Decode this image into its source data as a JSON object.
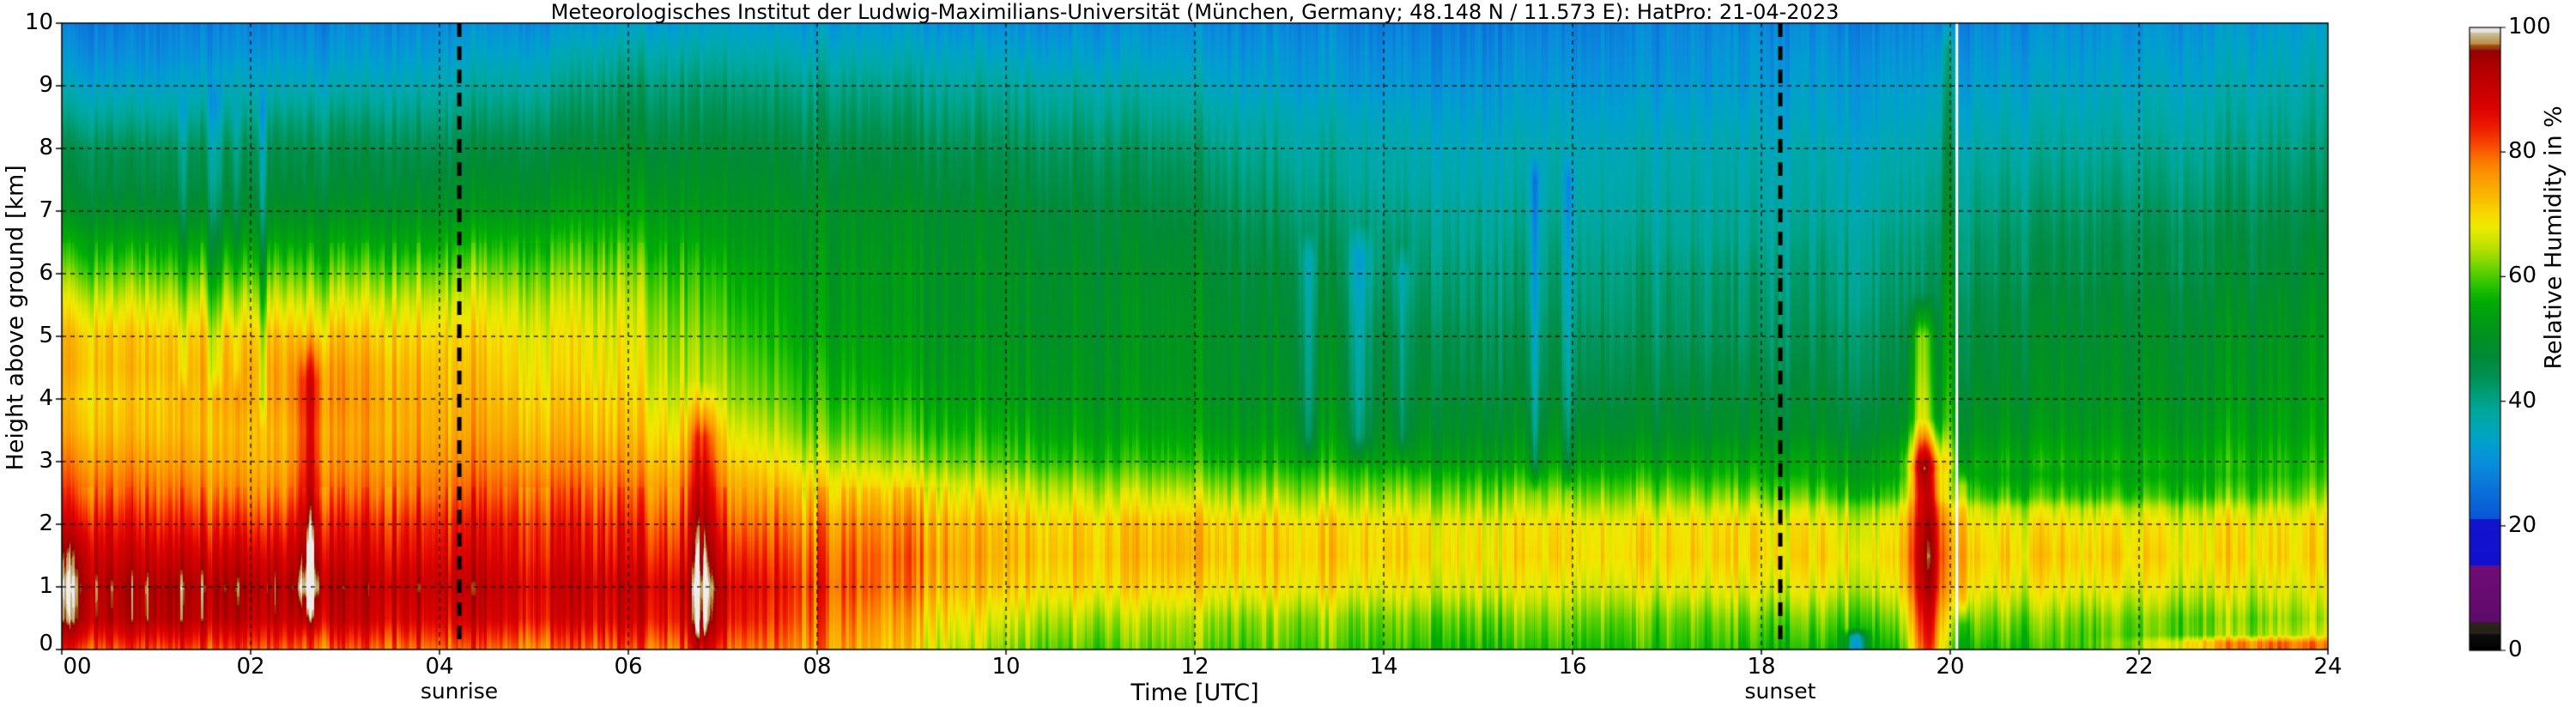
{
  "figure": {
    "title": "Meteorologisches Institut der Ludwig-Maximilians-Universität (München, Germany; 48.148 N / 11.573 E):    HatPro: 21-04-2023",
    "background": "#ffffff"
  },
  "axes": {
    "xlabel": "Time [UTC]",
    "ylabel": "Height above ground [km]",
    "x_tick_labels": [
      "00",
      "02",
      "04",
      "06",
      "08",
      "10",
      "12",
      "14",
      "16",
      "18",
      "20",
      "22",
      "24"
    ],
    "x_tick_hours": [
      0,
      2,
      4,
      6,
      8,
      10,
      12,
      14,
      16,
      18,
      20,
      22,
      24
    ],
    "y_tick_labels": [
      "0",
      "1",
      "2",
      "3",
      "4",
      "5",
      "6",
      "7",
      "8",
      "9",
      "10"
    ],
    "y_tick_km": [
      0,
      1,
      2,
      3,
      4,
      5,
      6,
      7,
      8,
      9,
      10
    ],
    "x_range_hours": [
      0,
      24
    ],
    "y_range_km": [
      0,
      10
    ],
    "grid": "dashed black"
  },
  "markers": {
    "sunrise": {
      "label": "sunrise",
      "time_hours": 4.21
    },
    "sunset": {
      "label": "sunset",
      "time_hours": 18.2
    }
  },
  "colorbar": {
    "label": "Relative Humidity in %",
    "tick_labels": [
      "0",
      "20",
      "40",
      "60",
      "80",
      "100"
    ],
    "tick_values": [
      0,
      20,
      40,
      60,
      80,
      100
    ],
    "range": [
      0,
      100
    ]
  },
  "chart_data": {
    "type": "heatmap",
    "title": "Meteorologisches Institut der Ludwig-Maximilians-Universität (München, Germany; 48.148 N / 11.573 E):    HatPro: 21-04-2023",
    "xlabel": "Time [UTC]",
    "ylabel": "Height above ground [km]",
    "value_label": "Relative Humidity in %",
    "x_unit": "hours UTC on 21-04-2023",
    "hours": [
      0,
      1,
      2,
      3,
      4,
      5,
      6,
      7,
      8,
      9,
      10,
      11,
      12,
      13,
      14,
      15,
      16,
      17,
      18,
      19,
      20,
      21,
      22,
      23,
      24
    ],
    "heights_km": [
      0,
      0.5,
      1,
      1.5,
      2,
      2.5,
      3,
      3.5,
      4,
      4.5,
      5,
      5.5,
      6,
      6.5,
      7,
      7.5,
      8,
      8.5,
      9,
      9.5,
      10
    ],
    "rh_grid_rows_bottom_up": [
      [
        82,
        82,
        80,
        80,
        80,
        80,
        80,
        79,
        77,
        69,
        62,
        60,
        60,
        60,
        59,
        58,
        58,
        58,
        57,
        56,
        57,
        58,
        60,
        64,
        68
      ],
      [
        93,
        94,
        90,
        90,
        89,
        89,
        88,
        86,
        80,
        72,
        66,
        64,
        63,
        63,
        62,
        62,
        62,
        61,
        61,
        61,
        62,
        62,
        62,
        62,
        63
      ],
      [
        95,
        95,
        93,
        92,
        92,
        91,
        90,
        88,
        82,
        76,
        71,
        70,
        69,
        69,
        68,
        68,
        67,
        67,
        67,
        67,
        68,
        68,
        68,
        67,
        67
      ],
      [
        92,
        90,
        88,
        88,
        88,
        88,
        86,
        84,
        80,
        77,
        73,
        72,
        72,
        71,
        71,
        70,
        70,
        70,
        70,
        70,
        70,
        71,
        71,
        70,
        70
      ],
      [
        88,
        85,
        82,
        84,
        85,
        86,
        83,
        80,
        77,
        75,
        72,
        71,
        71,
        70,
        70,
        69,
        69,
        69,
        69,
        68,
        68,
        69,
        69,
        69,
        69
      ],
      [
        82,
        80,
        76,
        79,
        80,
        82,
        79,
        76,
        72,
        70,
        67,
        65,
        64,
        63,
        63,
        62,
        62,
        62,
        62,
        61,
        62,
        62,
        62,
        62,
        63
      ],
      [
        78,
        76,
        73,
        76,
        77,
        78,
        75,
        72,
        66,
        63,
        60,
        58,
        57,
        56,
        55,
        54,
        54,
        54,
        54,
        54,
        55,
        56,
        56,
        57,
        57
      ],
      [
        74,
        73,
        72,
        75,
        75,
        75,
        72,
        68,
        61,
        58,
        56,
        54,
        53,
        52,
        51,
        50,
        50,
        49,
        49,
        49,
        51,
        52,
        53,
        54,
        54
      ],
      [
        72,
        72,
        74,
        76,
        74,
        73,
        70,
        64,
        58,
        55,
        53,
        52,
        51,
        50,
        49,
        48,
        47,
        47,
        47,
        47,
        49,
        50,
        51,
        52,
        53
      ],
      [
        74,
        73,
        74,
        75,
        73,
        71,
        68,
        62,
        56,
        53,
        52,
        51,
        50,
        49,
        48,
        46,
        45,
        45,
        45,
        45,
        47,
        49,
        50,
        51,
        52
      ],
      [
        73,
        72,
        72,
        72,
        71,
        70,
        67,
        60,
        54,
        52,
        51,
        50,
        50,
        48,
        47,
        45,
        44,
        43,
        43,
        44,
        46,
        48,
        49,
        50,
        51
      ],
      [
        68,
        67,
        66,
        67,
        67,
        67,
        65,
        58,
        53,
        51,
        50,
        50,
        49,
        47,
        45,
        43,
        42,
        42,
        42,
        42,
        45,
        47,
        48,
        49,
        50
      ],
      [
        62,
        61,
        60,
        61,
        62,
        63,
        62,
        56,
        52,
        51,
        50,
        49,
        48,
        46,
        43,
        42,
        41,
        41,
        41,
        41,
        43,
        45,
        46,
        47,
        48
      ],
      [
        56,
        55,
        54,
        55,
        56,
        58,
        58,
        53,
        51,
        50,
        49,
        48,
        47,
        44,
        42,
        40,
        40,
        39,
        39,
        40,
        42,
        44,
        45,
        46,
        47
      ],
      [
        50,
        49,
        49,
        50,
        51,
        53,
        54,
        51,
        50,
        49,
        48,
        47,
        45,
        42,
        40,
        39,
        38,
        38,
        38,
        38,
        40,
        42,
        43,
        44,
        45
      ],
      [
        47,
        46,
        46,
        47,
        48,
        50,
        51,
        49,
        48,
        47,
        46,
        45,
        43,
        40,
        38,
        37,
        37,
        37,
        37,
        37,
        39,
        40,
        41,
        42,
        43
      ],
      [
        45,
        44,
        44,
        45,
        45,
        47,
        48,
        47,
        46,
        45,
        44,
        43,
        41,
        38,
        37,
        36,
        36,
        36,
        36,
        36,
        37,
        38,
        39,
        40,
        41
      ],
      [
        40,
        39,
        40,
        41,
        41,
        43,
        45,
        44,
        43,
        42,
        41,
        40,
        38,
        36,
        35,
        34,
        34,
        34,
        34,
        34,
        35,
        36,
        37,
        38,
        39
      ],
      [
        35,
        34,
        35,
        36,
        37,
        39,
        42,
        41,
        40,
        39,
        38,
        37,
        35,
        33,
        32,
        32,
        32,
        32,
        32,
        33,
        33,
        34,
        35,
        36,
        37
      ],
      [
        31,
        30,
        31,
        32,
        33,
        35,
        38,
        37,
        36,
        35,
        34,
        33,
        32,
        31,
        30,
        30,
        30,
        30,
        31,
        31,
        31,
        32,
        33,
        34,
        35
      ],
      [
        28,
        28,
        28,
        29,
        30,
        31,
        33,
        33,
        32,
        31,
        30,
        30,
        29,
        29,
        28,
        28,
        28,
        29,
        29,
        29,
        29,
        30,
        31,
        32,
        33
      ]
    ],
    "anomalies": [
      {
        "name": "evening-moist-plume-low",
        "t": 19.75,
        "st": 0.13,
        "h0": 0,
        "h1": 2.9,
        "soft": 0.8,
        "amp": 26
      },
      {
        "name": "evening-moist-plume-mid",
        "t": 19.7,
        "st": 0.08,
        "h0": 2.9,
        "h1": 5.0,
        "soft": 0.7,
        "amp": 18
      },
      {
        "name": "evening-plume-upper-green",
        "t": 19.97,
        "st": 0.06,
        "h0": 3.0,
        "h1": 9.6,
        "soft": 0.6,
        "amp": 9
      },
      {
        "name": "plume-tail-after-gap",
        "t": 20.13,
        "st": 0.05,
        "h0": 0.8,
        "h1": 2.6,
        "soft": 0.4,
        "amp": 10
      },
      {
        "name": "morning-moist-column",
        "t": 6.78,
        "st": 0.1,
        "h0": 0.3,
        "h1": 3.4,
        "soft": 0.9,
        "amp": 14
      },
      {
        "name": "night-moist-column",
        "t": 2.62,
        "st": 0.09,
        "h0": 1.0,
        "h1": 4.3,
        "soft": 0.8,
        "amp": 12
      },
      {
        "name": "midnight-deep-red",
        "t": 0.12,
        "st": 0.12,
        "h0": 0.3,
        "h1": 1.6,
        "soft": 0.5,
        "amp": 4
      },
      {
        "name": "dry-streak-1",
        "t": 13.2,
        "st": 0.05,
        "h0": 3.4,
        "h1": 6.2,
        "soft": 0.5,
        "amp": -9
      },
      {
        "name": "dry-streak-2",
        "t": 13.75,
        "st": 0.08,
        "h0": 3.4,
        "h1": 6.3,
        "soft": 0.5,
        "amp": -10
      },
      {
        "name": "dry-streak-3",
        "t": 14.2,
        "st": 0.05,
        "h0": 3.4,
        "h1": 6.0,
        "soft": 0.5,
        "amp": -8
      },
      {
        "name": "cyan-streak-1",
        "t": 15.6,
        "st": 0.035,
        "h0": 3.0,
        "h1": 7.5,
        "soft": 0.5,
        "amp": -11
      },
      {
        "name": "cyan-streak-2",
        "t": 15.95,
        "st": 0.035,
        "h0": 3.0,
        "h1": 7.5,
        "soft": 0.5,
        "amp": -9
      },
      {
        "name": "night-gap-streak-1",
        "t": 1.28,
        "st": 0.03,
        "h0": 4.5,
        "h1": 8.6,
        "soft": 0.5,
        "amp": -8
      },
      {
        "name": "night-gap-streak-2",
        "t": 1.62,
        "st": 0.05,
        "h0": 4.5,
        "h1": 8.7,
        "soft": 0.5,
        "amp": -8
      },
      {
        "name": "night-gap-streak-3",
        "t": 1.85,
        "st": 0.03,
        "h0": 4.5,
        "h1": 8.5,
        "soft": 0.5,
        "amp": -7
      },
      {
        "name": "night-gap-streak-4",
        "t": 2.12,
        "st": 0.03,
        "h0": 4.0,
        "h1": 8.6,
        "soft": 0.5,
        "amp": -9
      },
      {
        "name": "surface-dry-spot",
        "t": 19.0,
        "st": 0.07,
        "h0": 0,
        "h1": 0.2,
        "soft": 0.15,
        "amp": -22
      },
      {
        "name": "late-surface-moist-line",
        "t": 23.3,
        "st": 0.8,
        "h0": 0,
        "h1": 0.12,
        "soft": 0.12,
        "amp": 14
      },
      {
        "name": "bright-green-lid",
        "t": 21,
        "st": 2.2,
        "h0": 2.45,
        "h1": 2.8,
        "soft": 0.2,
        "amp": -4
      }
    ],
    "data_gap_lines_hours": [
      20.07
    ],
    "texture": {
      "vertical_streak_noise": true,
      "amp_low_levels_night": 5.5,
      "amp_low_levels_day": 3.8,
      "amp_mid": 3.0,
      "amp_upper": 2.4
    },
    "colormap": [
      [
        0,
        "#000000"
      ],
      [
        2.5,
        "#0e0e0e"
      ],
      [
        2.5,
        "#27211a"
      ],
      [
        4.5,
        "#2c251d"
      ],
      [
        4.5,
        "#5f0a6c"
      ],
      [
        13.5,
        "#700d76"
      ],
      [
        13.5,
        "#1010d0"
      ],
      [
        21,
        "#1414cd"
      ],
      [
        21,
        "#0a55d7"
      ],
      [
        26,
        "#0a73da"
      ],
      [
        30,
        "#0a8edc"
      ],
      [
        33,
        "#00a0cf"
      ],
      [
        36,
        "#00a8b2"
      ],
      [
        38.5,
        "#00a79b"
      ],
      [
        41,
        "#009f79"
      ],
      [
        44,
        "#009152"
      ],
      [
        47,
        "#008a38"
      ],
      [
        50,
        "#009024"
      ],
      [
        53,
        "#009c14"
      ],
      [
        56,
        "#00ad04"
      ],
      [
        58,
        "#1fbf00"
      ],
      [
        60,
        "#49cc00"
      ],
      [
        62,
        "#7cd600"
      ],
      [
        64,
        "#abdf00"
      ],
      [
        66,
        "#d2e600"
      ],
      [
        68,
        "#eeea00"
      ],
      [
        69.5,
        "#f5e000"
      ],
      [
        71,
        "#f8cf00"
      ],
      [
        73,
        "#f9b800"
      ],
      [
        75,
        "#faa500"
      ],
      [
        77,
        "#fb8f00"
      ],
      [
        79,
        "#fb7100"
      ],
      [
        81,
        "#f84d00"
      ],
      [
        83,
        "#f22b00"
      ],
      [
        85,
        "#e91200"
      ],
      [
        87,
        "#dd0300"
      ],
      [
        89,
        "#d00000"
      ],
      [
        91,
        "#c30000"
      ],
      [
        93,
        "#b60000"
      ],
      [
        95,
        "#a40000"
      ],
      [
        96.5,
        "#930202"
      ],
      [
        96.5,
        "#8f2e05"
      ],
      [
        97.3,
        "#a85912"
      ],
      [
        97.3,
        "#b98a45"
      ],
      [
        98.3,
        "#c4a770"
      ],
      [
        99.2,
        "#cfc2a2"
      ],
      [
        99.2,
        "#e2e0db"
      ],
      [
        100,
        "#eeecea"
      ]
    ],
    "legend_position": "right colorbar",
    "grid_on": true
  }
}
